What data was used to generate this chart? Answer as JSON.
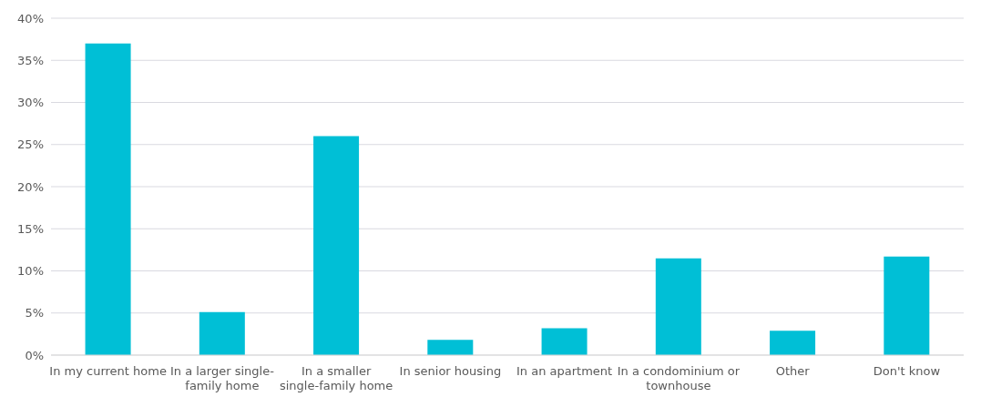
{
  "chart_data": {
    "type": "bar",
    "categories": [
      "In my current home",
      "In a larger single-family home",
      "In a smaller single-family home",
      "In senior housing",
      "In an apartment",
      "In a condominium or townhouse",
      "Other",
      "Don't know"
    ],
    "values": [
      37,
      5.1,
      26,
      1.8,
      3.2,
      11.5,
      2.9,
      11.7
    ],
    "color": "#00bfd6",
    "ylim": [
      0,
      40
    ],
    "yticks": [
      {
        "value": 0,
        "label": "0%"
      },
      {
        "value": 5,
        "label": "5%"
      },
      {
        "value": 10,
        "label": "10%"
      },
      {
        "value": 15,
        "label": "15%"
      },
      {
        "value": 20,
        "label": "20%"
      },
      {
        "value": 25,
        "label": "25%"
      },
      {
        "value": 30,
        "label": "30%"
      },
      {
        "value": 35,
        "label": "35%"
      },
      {
        "value": 40,
        "label": "40%"
      }
    ],
    "grid": "y"
  }
}
